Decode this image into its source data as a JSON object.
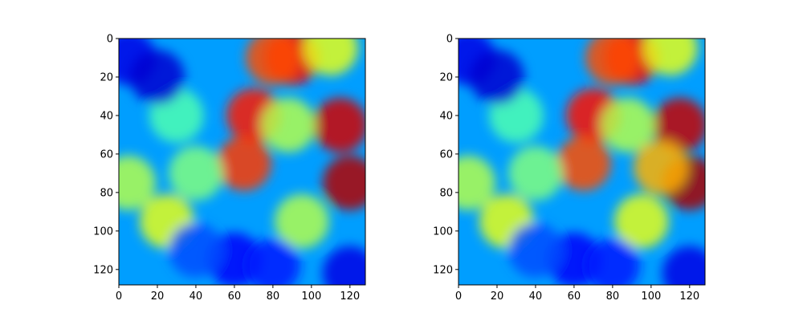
{
  "chart_data": [
    {
      "type": "heatmap",
      "title": "",
      "xlabel": "",
      "ylabel": "",
      "xlim": [
        0,
        128
      ],
      "ylim": [
        128,
        0
      ],
      "xticks": [
        0,
        20,
        40,
        60,
        80,
        100,
        120
      ],
      "yticks": [
        0,
        20,
        40,
        60,
        80,
        100,
        120
      ],
      "colormap": "jet",
      "grid": false,
      "legend": "none",
      "hotspots": [
        {
          "x": 90,
          "y": 10,
          "v": 0.88
        },
        {
          "x": 115,
          "y": 45,
          "v": 0.92
        },
        {
          "x": 120,
          "y": 75,
          "v": 0.95
        },
        {
          "x": 70,
          "y": 40,
          "v": 0.85
        },
        {
          "x": 65,
          "y": 65,
          "v": 0.82
        },
        {
          "x": 80,
          "y": 10,
          "v": 0.8
        },
        {
          "x": 110,
          "y": 5,
          "v": 0.6
        },
        {
          "x": 88,
          "y": 45,
          "v": 0.55
        },
        {
          "x": 95,
          "y": 95,
          "v": 0.55
        },
        {
          "x": 5,
          "y": 75,
          "v": 0.55
        },
        {
          "x": 25,
          "y": 95,
          "v": 0.6
        },
        {
          "x": 40,
          "y": 70,
          "v": 0.5
        },
        {
          "x": 30,
          "y": 40,
          "v": 0.45
        },
        {
          "x": 5,
          "y": 10,
          "v": 0.1
        },
        {
          "x": 20,
          "y": 20,
          "v": 0.08
        },
        {
          "x": 60,
          "y": 115,
          "v": 0.12
        },
        {
          "x": 120,
          "y": 122,
          "v": 0.1
        },
        {
          "x": 80,
          "y": 118,
          "v": 0.15
        },
        {
          "x": 40,
          "y": 110,
          "v": 0.2
        }
      ]
    },
    {
      "type": "heatmap",
      "title": "",
      "xlabel": "",
      "ylabel": "",
      "xlim": [
        0,
        128
      ],
      "ylim": [
        128,
        0
      ],
      "xticks": [
        0,
        20,
        40,
        60,
        80,
        100,
        120
      ],
      "yticks": [
        0,
        20,
        40,
        60,
        80,
        100,
        120
      ],
      "colormap": "jet",
      "grid": false,
      "legend": "none",
      "hotspots": [
        {
          "x": 90,
          "y": 10,
          "v": 0.88
        },
        {
          "x": 115,
          "y": 45,
          "v": 0.93
        },
        {
          "x": 120,
          "y": 75,
          "v": 0.96
        },
        {
          "x": 70,
          "y": 40,
          "v": 0.86
        },
        {
          "x": 65,
          "y": 65,
          "v": 0.8
        },
        {
          "x": 80,
          "y": 10,
          "v": 0.8
        },
        {
          "x": 110,
          "y": 5,
          "v": 0.6
        },
        {
          "x": 88,
          "y": 45,
          "v": 0.55
        },
        {
          "x": 105,
          "y": 67,
          "v": 0.7
        },
        {
          "x": 95,
          "y": 95,
          "v": 0.6
        },
        {
          "x": 5,
          "y": 75,
          "v": 0.55
        },
        {
          "x": 25,
          "y": 95,
          "v": 0.6
        },
        {
          "x": 40,
          "y": 70,
          "v": 0.5
        },
        {
          "x": 30,
          "y": 40,
          "v": 0.45
        },
        {
          "x": 5,
          "y": 10,
          "v": 0.1
        },
        {
          "x": 20,
          "y": 20,
          "v": 0.08
        },
        {
          "x": 60,
          "y": 115,
          "v": 0.12
        },
        {
          "x": 120,
          "y": 122,
          "v": 0.1
        },
        {
          "x": 80,
          "y": 118,
          "v": 0.15
        },
        {
          "x": 40,
          "y": 110,
          "v": 0.2
        }
      ]
    }
  ]
}
